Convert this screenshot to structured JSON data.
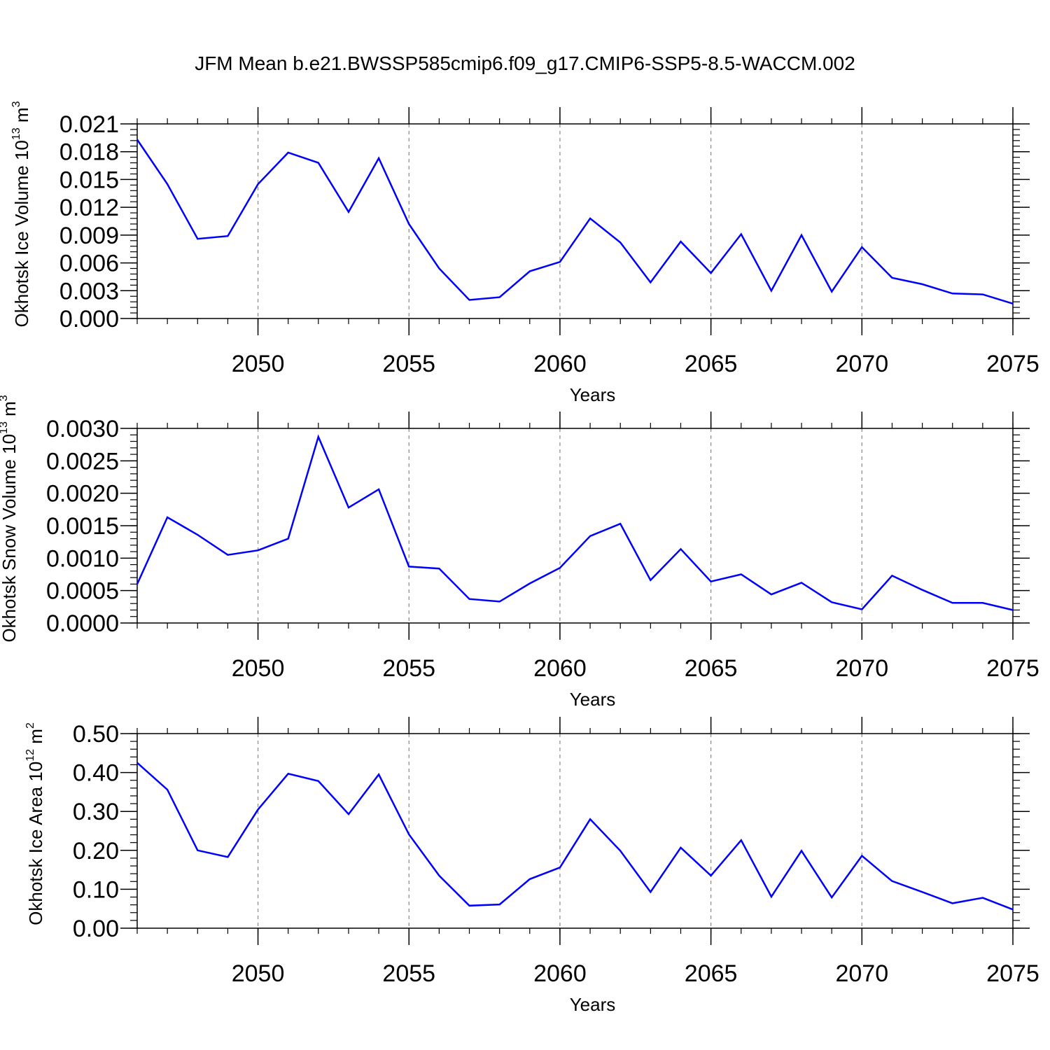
{
  "figure": {
    "title": "JFM Mean b.e21.BWSSP585cmip6.f09_g17.CMIP6-SSP5-8.5-WACCM.002",
    "line_color": "#0000ff",
    "grid_color": "#888888"
  },
  "chart_data": [
    {
      "type": "line",
      "title": "",
      "xlabel": "Years",
      "ylabel_prefix": "Okhotsk Ice Volume 10",
      "ylabel_exp": "13",
      "ylabel_suffix": " m",
      "ylabel_unit_exp": "3",
      "xlim": [
        2046,
        2075
      ],
      "ylim": [
        0,
        0.021
      ],
      "xticks": [
        2050,
        2055,
        2060,
        2065,
        2070,
        2075
      ],
      "xtick_labels": [
        "2050",
        "2055",
        "2060",
        "2065",
        "2070",
        "2075"
      ],
      "yticks": [
        0,
        0.003,
        0.006,
        0.009,
        0.012,
        0.015,
        0.018,
        0.021
      ],
      "ytick_labels": [
        "0.000",
        "0.003",
        "0.006",
        "0.009",
        "0.012",
        "0.015",
        "0.018",
        "0.021"
      ],
      "ytick_minor_step": 0.0006,
      "grid": "x-dashed",
      "x": [
        2046,
        2047,
        2048,
        2049,
        2050,
        2051,
        2052,
        2053,
        2054,
        2055,
        2056,
        2057,
        2058,
        2059,
        2060,
        2061,
        2062,
        2063,
        2064,
        2065,
        2066,
        2067,
        2068,
        2069,
        2070,
        2071,
        2072,
        2073,
        2074,
        2075
      ],
      "series": [
        {
          "values": [
            0.0193,
            0.0145,
            0.0086,
            0.0089,
            0.0145,
            0.0179,
            0.0168,
            0.0115,
            0.0173,
            0.0102,
            0.0054,
            0.002,
            0.0023,
            0.0051,
            0.0061,
            0.0108,
            0.0082,
            0.0039,
            0.0083,
            0.0049,
            0.0091,
            0.003,
            0.009,
            0.0029,
            0.0077,
            0.0044,
            0.0037,
            0.0027,
            0.0026,
            0.0016
          ]
        }
      ]
    },
    {
      "type": "line",
      "title": "",
      "xlabel": "Years",
      "ylabel_prefix": "Okhotsk Snow Volume 10",
      "ylabel_exp": "13",
      "ylabel_suffix": " m",
      "ylabel_unit_exp": "3",
      "xlim": [
        2046,
        2075
      ],
      "ylim": [
        0,
        0.003
      ],
      "xticks": [
        2050,
        2055,
        2060,
        2065,
        2070,
        2075
      ],
      "xtick_labels": [
        "2050",
        "2055",
        "2060",
        "2065",
        "2070",
        "2075"
      ],
      "yticks": [
        0,
        0.0005,
        0.001,
        0.0015,
        0.002,
        0.0025,
        0.003
      ],
      "ytick_labels": [
        "0.0000",
        "0.0005",
        "0.0010",
        "0.0015",
        "0.0020",
        "0.0025",
        "0.0030"
      ],
      "ytick_minor_step": 0.0001,
      "grid": "x-dashed",
      "x": [
        2046,
        2047,
        2048,
        2049,
        2050,
        2051,
        2052,
        2053,
        2054,
        2055,
        2056,
        2057,
        2058,
        2059,
        2060,
        2061,
        2062,
        2063,
        2064,
        2065,
        2066,
        2067,
        2068,
        2069,
        2070,
        2071,
        2072,
        2073,
        2074,
        2075
      ],
      "series": [
        {
          "values": [
            0.0006,
            0.00163,
            0.00136,
            0.00105,
            0.00112,
            0.0013,
            0.00287,
            0.00178,
            0.00206,
            0.00087,
            0.00084,
            0.00037,
            0.00033,
            0.00061,
            0.00085,
            0.00134,
            0.00153,
            0.00066,
            0.00114,
            0.00064,
            0.00075,
            0.00044,
            0.00062,
            0.00032,
            0.00021,
            0.00073,
            0.00051,
            0.00031,
            0.00031,
            0.0002
          ]
        }
      ]
    },
    {
      "type": "line",
      "title": "",
      "xlabel": "Years",
      "ylabel_prefix": "Okhotsk Ice Area 10",
      "ylabel_exp": "12",
      "ylabel_suffix": " m",
      "ylabel_unit_exp": "2",
      "xlim": [
        2046,
        2075
      ],
      "ylim": [
        0,
        0.5
      ],
      "xticks": [
        2050,
        2055,
        2060,
        2065,
        2070,
        2075
      ],
      "xtick_labels": [
        "2050",
        "2055",
        "2060",
        "2065",
        "2070",
        "2075"
      ],
      "yticks": [
        0,
        0.1,
        0.2,
        0.3,
        0.4,
        0.5
      ],
      "ytick_labels": [
        "0.00",
        "0.10",
        "0.20",
        "0.30",
        "0.40",
        "0.50"
      ],
      "ytick_minor_step": 0.02,
      "grid": "x-dashed",
      "x": [
        2046,
        2047,
        2048,
        2049,
        2050,
        2051,
        2052,
        2053,
        2054,
        2055,
        2056,
        2057,
        2058,
        2059,
        2060,
        2061,
        2062,
        2063,
        2064,
        2065,
        2066,
        2067,
        2068,
        2069,
        2070,
        2071,
        2072,
        2073,
        2074,
        2075
      ],
      "series": [
        {
          "values": [
            0.425,
            0.356,
            0.2,
            0.183,
            0.305,
            0.397,
            0.378,
            0.293,
            0.395,
            0.241,
            0.135,
            0.058,
            0.061,
            0.126,
            0.156,
            0.28,
            0.199,
            0.093,
            0.207,
            0.135,
            0.226,
            0.081,
            0.199,
            0.079,
            0.186,
            0.121,
            0.093,
            0.064,
            0.078,
            0.048
          ]
        }
      ]
    }
  ]
}
